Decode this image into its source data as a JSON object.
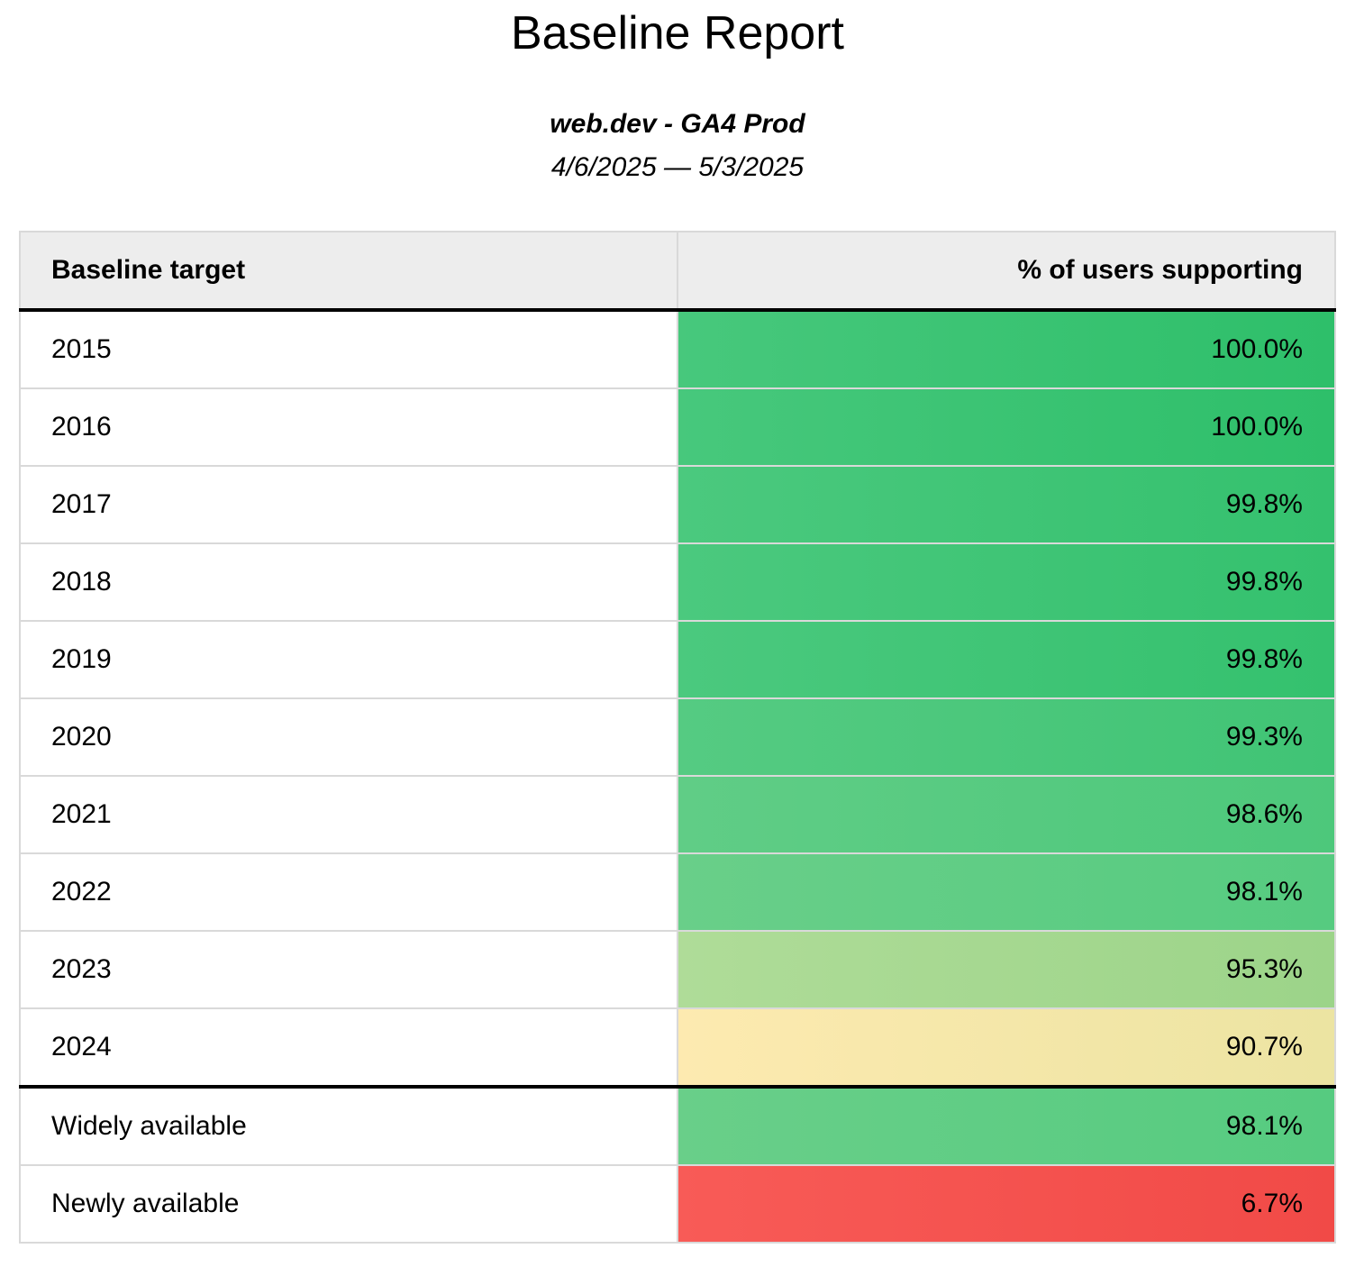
{
  "report": {
    "title": "Baseline Report",
    "property": "web.dev - GA4 Prod",
    "date_range": "4/6/2025 — 5/3/2025"
  },
  "table": {
    "headers": [
      "Baseline target",
      "% of users supporting"
    ],
    "rows": [
      {
        "label": "2015",
        "value": "100.0%",
        "bg_from": "#47c87c",
        "bg_to": "#2ebf6a"
      },
      {
        "label": "2016",
        "value": "100.0%",
        "bg_from": "#47c87c",
        "bg_to": "#2ebf6a"
      },
      {
        "label": "2017",
        "value": "99.8%",
        "bg_from": "#4bc97e",
        "bg_to": "#34c16e"
      },
      {
        "label": "2018",
        "value": "99.8%",
        "bg_from": "#4bc97e",
        "bg_to": "#34c16e"
      },
      {
        "label": "2019",
        "value": "99.8%",
        "bg_from": "#4bc97e",
        "bg_to": "#34c16e"
      },
      {
        "label": "2020",
        "value": "99.3%",
        "bg_from": "#55cb82",
        "bg_to": "#40c475"
      },
      {
        "label": "2021",
        "value": "98.6%",
        "bg_from": "#60cd86",
        "bg_to": "#4dc87b"
      },
      {
        "label": "2022",
        "value": "98.1%",
        "bg_from": "#69cf89",
        "bg_to": "#56cb80"
      },
      {
        "label": "2023",
        "value": "95.3%",
        "bg_from": "#afdc98",
        "bg_to": "#9cd489"
      },
      {
        "label": "2024",
        "value": "90.7%",
        "bg_from": "#fdeab0",
        "bg_to": "#ece4a2"
      },
      {
        "label": "Widely available",
        "value": "98.1%",
        "bg_from": "#69cf89",
        "bg_to": "#56cb80",
        "divider_before": true
      },
      {
        "label": "Newly available",
        "value": "6.7%",
        "bg_from": "#f85b57",
        "bg_to": "#f14a47"
      }
    ]
  },
  "colors": {
    "header_background": "#ededed",
    "grid_border": "#d9d9d9",
    "section_divider": "#000000"
  },
  "chart_data": {
    "type": "table",
    "title": "Baseline Report",
    "categories": [
      "2015",
      "2016",
      "2017",
      "2018",
      "2019",
      "2020",
      "2021",
      "2022",
      "2023",
      "2024",
      "Widely available",
      "Newly available"
    ],
    "values": [
      100.0,
      100.0,
      99.8,
      99.8,
      99.8,
      99.3,
      98.6,
      98.1,
      95.3,
      90.7,
      98.1,
      6.7
    ],
    "xlabel": "Baseline target",
    "ylabel": "% of users supporting"
  }
}
